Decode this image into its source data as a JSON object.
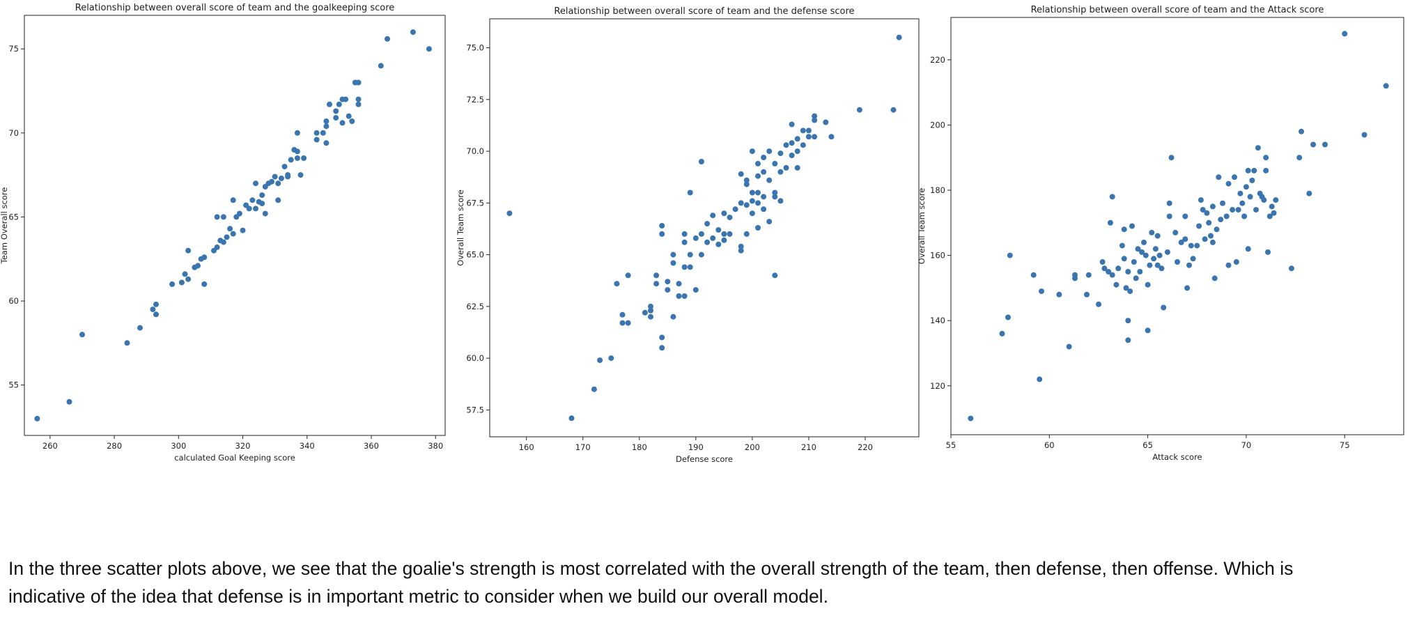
{
  "chart_data": [
    {
      "type": "scatter",
      "title": "Relationship between overall score of team and the goalkeeping score",
      "xlabel": "calculated Goal Keeping score",
      "ylabel": "Team Overall score",
      "xlim": [
        252,
        383
      ],
      "ylim": [
        52,
        77
      ],
      "xticks": [
        260,
        280,
        300,
        320,
        340,
        360,
        380
      ],
      "yticks": [
        55,
        60,
        65,
        70,
        75
      ],
      "xtick_labels": [
        "260",
        "280",
        "300",
        "320",
        "340",
        "360",
        "380"
      ],
      "ytick_labels": [
        "55",
        "60",
        "65",
        "70",
        "75"
      ],
      "grid": false,
      "color": "#3b75af",
      "points": [
        [
          256,
          53
        ],
        [
          266,
          54
        ],
        [
          270,
          58
        ],
        [
          284,
          57.5
        ],
        [
          288,
          58.4
        ],
        [
          292,
          59.5
        ],
        [
          293,
          59.2
        ],
        [
          293,
          59.8
        ],
        [
          298,
          61
        ],
        [
          301,
          61.1
        ],
        [
          302,
          61.6
        ],
        [
          303,
          61.3
        ],
        [
          303,
          63
        ],
        [
          305,
          62
        ],
        [
          306,
          62.1
        ],
        [
          307,
          62.5
        ],
        [
          308,
          62.6
        ],
        [
          308,
          61
        ],
        [
          311,
          63
        ],
        [
          312,
          63.2
        ],
        [
          312,
          65
        ],
        [
          313,
          63.6
        ],
        [
          314,
          63.5
        ],
        [
          314,
          65
        ],
        [
          315,
          63.8
        ],
        [
          316,
          64.3
        ],
        [
          317,
          64
        ],
        [
          317,
          66
        ],
        [
          318,
          65
        ],
        [
          319,
          65.2
        ],
        [
          320,
          64.2
        ],
        [
          321,
          65.7
        ],
        [
          322,
          65.5
        ],
        [
          323,
          66
        ],
        [
          324,
          65.5
        ],
        [
          324,
          67
        ],
        [
          325,
          65.9
        ],
        [
          326,
          66.3
        ],
        [
          326,
          65.8
        ],
        [
          327,
          66.8
        ],
        [
          327,
          65.2
        ],
        [
          328,
          67
        ],
        [
          329,
          67.1
        ],
        [
          330,
          67.4
        ],
        [
          331,
          67
        ],
        [
          331,
          66
        ],
        [
          332,
          67.3
        ],
        [
          333,
          68
        ],
        [
          334,
          67.5
        ],
        [
          334,
          67.4
        ],
        [
          335,
          68.4
        ],
        [
          336,
          69
        ],
        [
          337,
          68.5
        ],
        [
          337,
          68.9
        ],
        [
          337,
          70
        ],
        [
          338,
          67.5
        ],
        [
          339,
          68.5
        ],
        [
          343,
          70
        ],
        [
          343,
          69.6
        ],
        [
          345,
          70
        ],
        [
          346,
          69.4
        ],
        [
          346,
          70.4
        ],
        [
          346,
          70.7
        ],
        [
          347,
          71.7
        ],
        [
          349,
          71.3
        ],
        [
          349,
          70.9
        ],
        [
          350,
          71.7
        ],
        [
          351,
          70.6
        ],
        [
          351,
          72
        ],
        [
          352,
          72
        ],
        [
          353,
          71
        ],
        [
          354,
          70.7
        ],
        [
          355,
          73
        ],
        [
          356,
          73
        ],
        [
          356,
          72
        ],
        [
          356,
          71.7
        ],
        [
          363,
          74
        ],
        [
          365,
          75.6
        ],
        [
          373,
          76
        ],
        [
          378,
          75
        ]
      ]
    },
    {
      "type": "scatter",
      "title": "Relationship between overall score of team and the defense score",
      "xlabel": "Defense score",
      "ylabel": "Overall Team score",
      "xlim": [
        153.5,
        229.5
      ],
      "ylim": [
        56.2,
        76.4
      ],
      "xticks": [
        160,
        170,
        180,
        190,
        200,
        210,
        220
      ],
      "yticks": [
        57.5,
        60,
        62.5,
        65,
        67.5,
        70,
        72.5,
        75
      ],
      "xtick_labels": [
        "160",
        "170",
        "180",
        "190",
        "200",
        "210",
        "220"
      ],
      "ytick_labels": [
        "57.5",
        "60.0",
        "62.5",
        "65.0",
        "67.5",
        "70.0",
        "72.5",
        "75.0"
      ],
      "grid": false,
      "color": "#3b75af",
      "points": [
        [
          157,
          67
        ],
        [
          168,
          57.1
        ],
        [
          172,
          58.5
        ],
        [
          173,
          59.9
        ],
        [
          175,
          60
        ],
        [
          176,
          63.6
        ],
        [
          177,
          62.1
        ],
        [
          177,
          61.7
        ],
        [
          178,
          64
        ],
        [
          178,
          61.7
        ],
        [
          181,
          62.2
        ],
        [
          182,
          62.5
        ],
        [
          182,
          62.3
        ],
        [
          182,
          62
        ],
        [
          183,
          64
        ],
        [
          183,
          63.6
        ],
        [
          184,
          66.4
        ],
        [
          184,
          66
        ],
        [
          184,
          61
        ],
        [
          184,
          60.5
        ],
        [
          185,
          63.3
        ],
        [
          185,
          63.7
        ],
        [
          186,
          65
        ],
        [
          186,
          64.6
        ],
        [
          186,
          62
        ],
        [
          187,
          63.6
        ],
        [
          187,
          63
        ],
        [
          188,
          66
        ],
        [
          188,
          65.6
        ],
        [
          188,
          64.4
        ],
        [
          188,
          63
        ],
        [
          189,
          68
        ],
        [
          189,
          65
        ],
        [
          189,
          64.4
        ],
        [
          190,
          65.8
        ],
        [
          190,
          63.3
        ],
        [
          191,
          69.5
        ],
        [
          191,
          66
        ],
        [
          191,
          65
        ],
        [
          192,
          66.5
        ],
        [
          192,
          65.6
        ],
        [
          193,
          66.9
        ],
        [
          193,
          65.8
        ],
        [
          194,
          66.2
        ],
        [
          194,
          65.5
        ],
        [
          195,
          67
        ],
        [
          195,
          66
        ],
        [
          195,
          65.7
        ],
        [
          196,
          66.8
        ],
        [
          196,
          66
        ],
        [
          197,
          67.2
        ],
        [
          198,
          68.9
        ],
        [
          198,
          67.5
        ],
        [
          198,
          65.4
        ],
        [
          198,
          65.2
        ],
        [
          199,
          68.6
        ],
        [
          199,
          68.4
        ],
        [
          199,
          67.4
        ],
        [
          199,
          66
        ],
        [
          200,
          70
        ],
        [
          200,
          68
        ],
        [
          200,
          67.6
        ],
        [
          200,
          67
        ],
        [
          201,
          69.4
        ],
        [
          201,
          68.8
        ],
        [
          201,
          68
        ],
        [
          201,
          67.5
        ],
        [
          201,
          66.3
        ],
        [
          202,
          69.7
        ],
        [
          202,
          69
        ],
        [
          202,
          67.8
        ],
        [
          202,
          67.2
        ],
        [
          203,
          70
        ],
        [
          203,
          68.6
        ],
        [
          203,
          66.6
        ],
        [
          204,
          69.4
        ],
        [
          204,
          68
        ],
        [
          204,
          67.8
        ],
        [
          204,
          64
        ],
        [
          205,
          69.9
        ],
        [
          205,
          69
        ],
        [
          205,
          67.6
        ],
        [
          206,
          70.3
        ],
        [
          206,
          69.2
        ],
        [
          207,
          71.3
        ],
        [
          207,
          70.4
        ],
        [
          207,
          69.8
        ],
        [
          208,
          70.6
        ],
        [
          208,
          70
        ],
        [
          208,
          69.2
        ],
        [
          209,
          71
        ],
        [
          209,
          70.3
        ],
        [
          210,
          71
        ],
        [
          210,
          70.7
        ],
        [
          211,
          71.7
        ],
        [
          211,
          71.5
        ],
        [
          211,
          70.7
        ],
        [
          213,
          71.4
        ],
        [
          214,
          70.7
        ],
        [
          219,
          72
        ],
        [
          225,
          72
        ],
        [
          226,
          75.5
        ]
      ]
    },
    {
      "type": "scatter",
      "title": "Relationship between overall score of team and the Attack score",
      "xlabel": "Attack score",
      "ylabel": "Overall Team score",
      "xlim": [
        55,
        78
      ],
      "ylim": [
        105,
        233
      ],
      "xticks": [
        55,
        60,
        65,
        70,
        75
      ],
      "yticks": [
        120,
        140,
        160,
        180,
        200,
        220
      ],
      "xtick_labels": [
        "55",
        "60",
        "65",
        "70",
        "75"
      ],
      "ytick_labels": [
        "120",
        "140",
        "160",
        "180",
        "200",
        "220"
      ],
      "grid": false,
      "color": "#3b75af",
      "points": [
        [
          56,
          110
        ],
        [
          57.6,
          136
        ],
        [
          57.9,
          141
        ],
        [
          58,
          160
        ],
        [
          59.2,
          154
        ],
        [
          59.5,
          122
        ],
        [
          59.6,
          149
        ],
        [
          60.5,
          148
        ],
        [
          61,
          132
        ],
        [
          61.3,
          153
        ],
        [
          61.3,
          154
        ],
        [
          61.9,
          148
        ],
        [
          62,
          154
        ],
        [
          62.5,
          145
        ],
        [
          62.7,
          158
        ],
        [
          62.8,
          156
        ],
        [
          63,
          155
        ],
        [
          63.1,
          170
        ],
        [
          63.2,
          154
        ],
        [
          63.2,
          178
        ],
        [
          63.4,
          151
        ],
        [
          63.5,
          156
        ],
        [
          63.7,
          163
        ],
        [
          63.8,
          168
        ],
        [
          63.8,
          159
        ],
        [
          63.9,
          150
        ],
        [
          64,
          134
        ],
        [
          64,
          140
        ],
        [
          64,
          155
        ],
        [
          64.1,
          149
        ],
        [
          64.2,
          169
        ],
        [
          64.3,
          158
        ],
        [
          64.4,
          153
        ],
        [
          64.5,
          162
        ],
        [
          64.6,
          155
        ],
        [
          64.7,
          161
        ],
        [
          64.8,
          164
        ],
        [
          64.9,
          160
        ],
        [
          65,
          151
        ],
        [
          65,
          137
        ],
        [
          65.1,
          157
        ],
        [
          65.2,
          167
        ],
        [
          65.3,
          159
        ],
        [
          65.4,
          162
        ],
        [
          65.5,
          166
        ],
        [
          65.5,
          157
        ],
        [
          65.6,
          160
        ],
        [
          65.7,
          156
        ],
        [
          65.8,
          144
        ],
        [
          66,
          161
        ],
        [
          66.1,
          172
        ],
        [
          66.1,
          176
        ],
        [
          66.2,
          190
        ],
        [
          66.4,
          167
        ],
        [
          66.5,
          158
        ],
        [
          66.7,
          164
        ],
        [
          66.9,
          165
        ],
        [
          66.9,
          172
        ],
        [
          67,
          150
        ],
        [
          67.1,
          157
        ],
        [
          67.2,
          163
        ],
        [
          67.3,
          159
        ],
        [
          67.5,
          163
        ],
        [
          67.6,
          169
        ],
        [
          67.7,
          177
        ],
        [
          67.8,
          174
        ],
        [
          67.9,
          165
        ],
        [
          68,
          173
        ],
        [
          68.1,
          170
        ],
        [
          68.2,
          166
        ],
        [
          68.3,
          175
        ],
        [
          68.3,
          164
        ],
        [
          68.4,
          153
        ],
        [
          68.5,
          168
        ],
        [
          68.6,
          184
        ],
        [
          68.7,
          171
        ],
        [
          68.8,
          176
        ],
        [
          69,
          172
        ],
        [
          69.1,
          182
        ],
        [
          69.1,
          157
        ],
        [
          69.3,
          174
        ],
        [
          69.4,
          184
        ],
        [
          69.5,
          158
        ],
        [
          69.6,
          174
        ],
        [
          69.7,
          179
        ],
        [
          69.8,
          176
        ],
        [
          69.9,
          172
        ],
        [
          70,
          181
        ],
        [
          70.1,
          186
        ],
        [
          70.1,
          162
        ],
        [
          70.2,
          178
        ],
        [
          70.3,
          183
        ],
        [
          70.4,
          186
        ],
        [
          70.5,
          174
        ],
        [
          70.6,
          193
        ],
        [
          70.7,
          179
        ],
        [
          70.8,
          178
        ],
        [
          70.9,
          177
        ],
        [
          71,
          186
        ],
        [
          71,
          190
        ],
        [
          71.1,
          161
        ],
        [
          71.2,
          172
        ],
        [
          71.3,
          175
        ],
        [
          71.4,
          173
        ],
        [
          71.5,
          177
        ],
        [
          72.3,
          156
        ],
        [
          72.7,
          190
        ],
        [
          72.8,
          198
        ],
        [
          73.2,
          179
        ],
        [
          73.4,
          194
        ],
        [
          74,
          194
        ],
        [
          75,
          228
        ],
        [
          76,
          197
        ],
        [
          77.1,
          212
        ]
      ]
    }
  ],
  "caption": {
    "line1": "In the three scatter plots above, we see that the goalie's strength is most correlated with the overall strength of the team, then defense, then offense. Which is",
    "line2": "indicative of the idea that defense is in important metric to consider when we build our overall model."
  }
}
